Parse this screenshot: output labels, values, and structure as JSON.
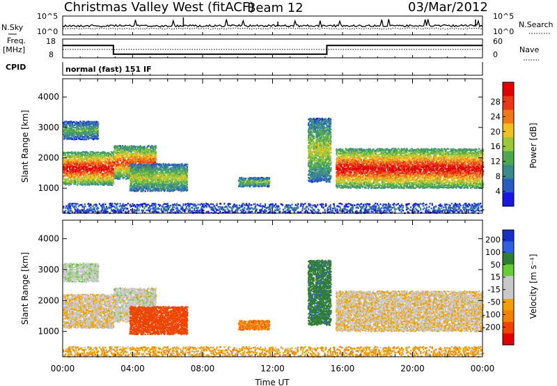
{
  "header": {
    "station": "Christmas Valley West (fitACF)",
    "beam": "Beam 12",
    "date": "03/Mar/2012"
  },
  "noise_panel": {
    "left_label": "N.Sky",
    "right_label": "N.Search",
    "left_ticks": [
      "10^5",
      "10^0"
    ],
    "right_ticks": [
      "10^5",
      "10^0"
    ]
  },
  "freq_panel": {
    "left_label_1": "Freq.",
    "left_label_2": "[MHz]",
    "right_label": "Nave",
    "left_ticks": [
      "18",
      "8"
    ],
    "right_ticks": [
      "60",
      "0"
    ]
  },
  "cpid_panel": {
    "label": "CPID",
    "mode": "normal (fast) 151 IF"
  },
  "power_panel": {
    "ylabel": "Slant Range [km]",
    "cbar_label": "Power [dB]",
    "cbar_ticks": [
      "4",
      "8",
      "12",
      "16",
      "20",
      "24",
      "28"
    ],
    "cbar_colors": [
      "#1818e0",
      "#2a5cc0",
      "#3a8a8a",
      "#4fa84f",
      "#9ac83a",
      "#f0c020",
      "#f07818",
      "#e83818",
      "#e00000"
    ]
  },
  "velocity_panel": {
    "ylabel": "Slant Range [km]",
    "cbar_label": "Velocity [m s⁻¹]",
    "cbar_ticks": [
      "200",
      "100",
      "50",
      "15",
      "-15",
      "-50",
      "-100",
      "-200"
    ],
    "cbar_colors": [
      "#1830c8",
      "#3060e0",
      "#2e7d32",
      "#66cc33",
      "#c8c8c8",
      "#c8c8c8",
      "#f0a000",
      "#f08000",
      "#ee4400",
      "#e00000"
    ]
  },
  "time_axis": {
    "label": "Time UT",
    "ticks": [
      "00:00",
      "04:00",
      "08:00",
      "12:00",
      "16:00",
      "20:00",
      "00:00"
    ]
  },
  "chart_data": {
    "type": "heatmap",
    "x_unit": "hours UT",
    "xlim": [
      0,
      24
    ],
    "ylim_km": [
      180,
      4600
    ],
    "y_ticks_km": [
      1000,
      2000,
      3000,
      4000
    ],
    "freq_MHz_steps": [
      {
        "from": 0.0,
        "to": 2.9,
        "freq": 16.5
      },
      {
        "from": 2.9,
        "to": 15.1,
        "freq": 10.5
      },
      {
        "from": 15.1,
        "to": 24.0,
        "freq": 16.5
      }
    ],
    "nave_approx": 30,
    "scatter_regions": [
      {
        "t0": 0.0,
        "t1": 2.9,
        "r_low": 1100,
        "r_high": 2200,
        "power_dB": 28,
        "velocity": -10
      },
      {
        "t0": 0.0,
        "t1": 2.0,
        "r_low": 2600,
        "r_high": 3200,
        "power_dB": 12,
        "velocity": 5
      },
      {
        "t0": 2.9,
        "t1": 5.3,
        "r_low": 1300,
        "r_high": 2400,
        "power_dB": 24,
        "velocity": 0
      },
      {
        "t0": 3.8,
        "t1": 7.1,
        "r_low": 900,
        "r_high": 1800,
        "power_dB": 16,
        "velocity": -120
      },
      {
        "t0": 10.0,
        "t1": 11.8,
        "r_low": 1050,
        "r_high": 1350,
        "power_dB": 14,
        "velocity": -60
      },
      {
        "t0": 14.0,
        "t1": 15.3,
        "r_low": 1200,
        "r_high": 3300,
        "power_dB": 16,
        "velocity": 60
      },
      {
        "t0": 15.6,
        "t1": 24.0,
        "r_low": 1000,
        "r_high": 2300,
        "power_dB": 28,
        "velocity": -10
      },
      {
        "t0": 0.0,
        "t1": 24.0,
        "r_low": 180,
        "r_high": 500,
        "power_dB": 6,
        "velocity": -30
      }
    ]
  }
}
